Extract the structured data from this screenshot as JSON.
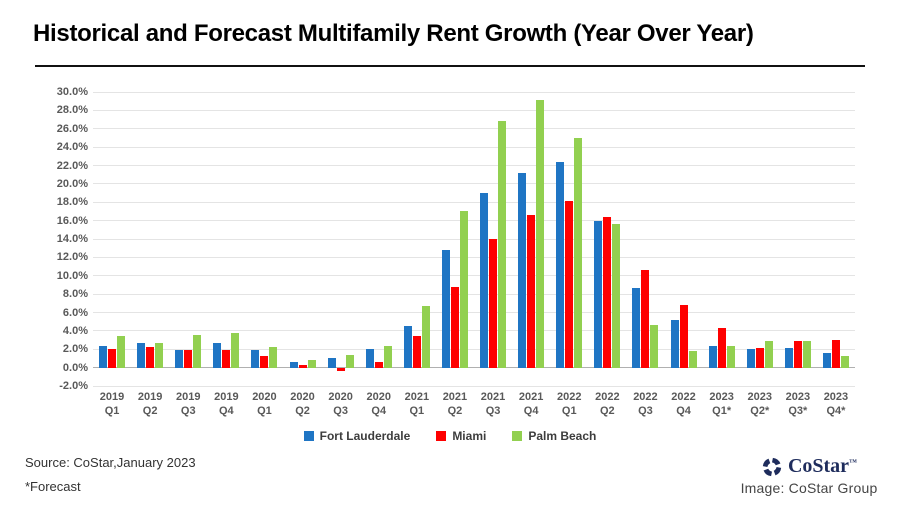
{
  "title": "Historical and Forecast Multifamily Rent Growth (Year Over Year)",
  "chart_data": {
    "type": "bar",
    "title": "Historical and Forecast Multifamily Rent Growth (Year Over Year)",
    "ylim": [
      -2,
      30
    ],
    "grid_step": 2,
    "grid": true,
    "legend_position": "bottom",
    "y_tick_labels": [
      "30.0%",
      "28.0%",
      "26.0%",
      "24.0%",
      "22.0%",
      "20.0%",
      "18.0%",
      "16.0%",
      "14.0%",
      "12.0%",
      "10.0%",
      "8.0%",
      "6.0%",
      "4.0%",
      "2.0%",
      "0.0%",
      "-2.0%"
    ],
    "categories": [
      {
        "year": "2019",
        "q": "Q1"
      },
      {
        "year": "2019",
        "q": "Q2"
      },
      {
        "year": "2019",
        "q": "Q3"
      },
      {
        "year": "2019",
        "q": "Q4"
      },
      {
        "year": "2020",
        "q": "Q1"
      },
      {
        "year": "2020",
        "q": "Q2"
      },
      {
        "year": "2020",
        "q": "Q3"
      },
      {
        "year": "2020",
        "q": "Q4"
      },
      {
        "year": "2021",
        "q": "Q1"
      },
      {
        "year": "2021",
        "q": "Q2"
      },
      {
        "year": "2021",
        "q": "Q3"
      },
      {
        "year": "2021",
        "q": "Q4"
      },
      {
        "year": "2022",
        "q": "Q1"
      },
      {
        "year": "2022",
        "q": "Q2"
      },
      {
        "year": "2022",
        "q": "Q3"
      },
      {
        "year": "2022",
        "q": "Q4"
      },
      {
        "year": "2023",
        "q": "Q1*"
      },
      {
        "year": "2023",
        "q": "Q2*"
      },
      {
        "year": "2023",
        "q": "Q3*"
      },
      {
        "year": "2023",
        "q": "Q4*"
      }
    ],
    "series": [
      {
        "name": "Fort Lauderdale",
        "color": "#1F75C4",
        "values": [
          2.4,
          2.7,
          1.9,
          2.7,
          1.9,
          0.6,
          1.1,
          2.0,
          4.5,
          12.8,
          19.0,
          21.2,
          22.4,
          16.0,
          8.7,
          5.2,
          2.3,
          2.0,
          2.1,
          1.6
        ]
      },
      {
        "name": "Miami",
        "color": "#FE0000",
        "values": [
          2.0,
          2.2,
          1.9,
          1.9,
          1.3,
          0.3,
          -0.4,
          0.6,
          3.4,
          8.8,
          14.0,
          16.6,
          18.1,
          16.4,
          10.6,
          6.8,
          4.3,
          2.1,
          2.9,
          3.0
        ]
      },
      {
        "name": "Palm Beach",
        "color": "#92D050",
        "values": [
          3.4,
          2.7,
          3.5,
          3.8,
          2.2,
          0.8,
          1.4,
          2.4,
          6.7,
          17.1,
          26.8,
          29.1,
          25.0,
          15.6,
          4.6,
          1.8,
          2.3,
          2.9,
          2.9,
          1.3
        ]
      }
    ]
  },
  "footer": {
    "source": "Source: CoStar,January 2023",
    "forecast_note": "*Forecast",
    "credit": "Image: CoStar Group"
  },
  "brand": {
    "name": "CoStar",
    "tm": "™",
    "color": "#1e2c5c"
  }
}
